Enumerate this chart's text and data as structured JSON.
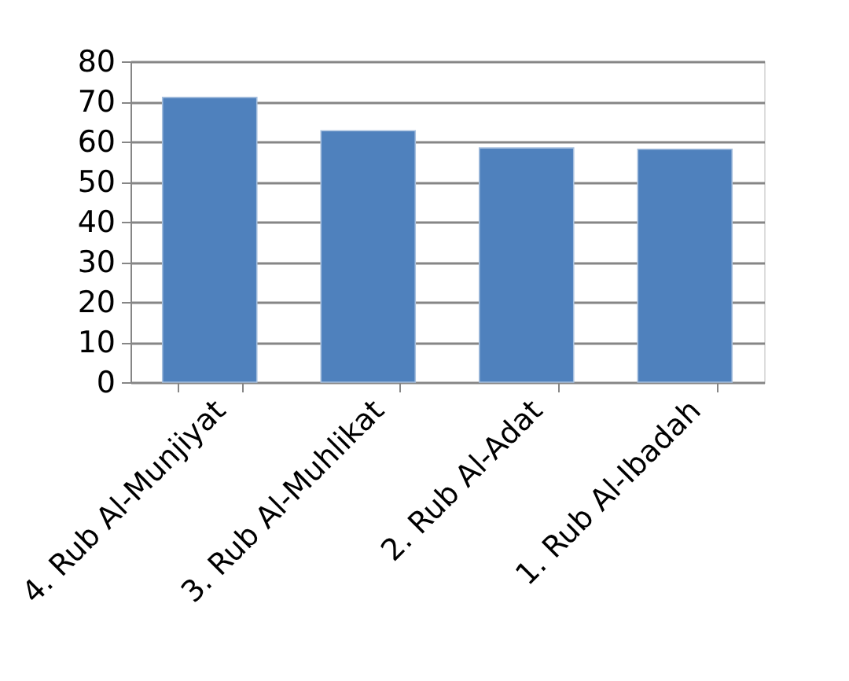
{
  "chart_data": {
    "type": "bar",
    "categories": [
      "4. Rub Al-Munjiyat",
      "3. Rub Al-Muhlikat",
      "2. Rub Al-Adat",
      "1. Rub Al-Ibadah"
    ],
    "values": [
      71,
      62.7,
      58.4,
      58.1
    ],
    "color": "#4f81bd",
    "ylim": [
      0,
      80
    ],
    "yticks": [
      0,
      10,
      20,
      30,
      40,
      50,
      60,
      70,
      80
    ],
    "grid": "y"
  }
}
